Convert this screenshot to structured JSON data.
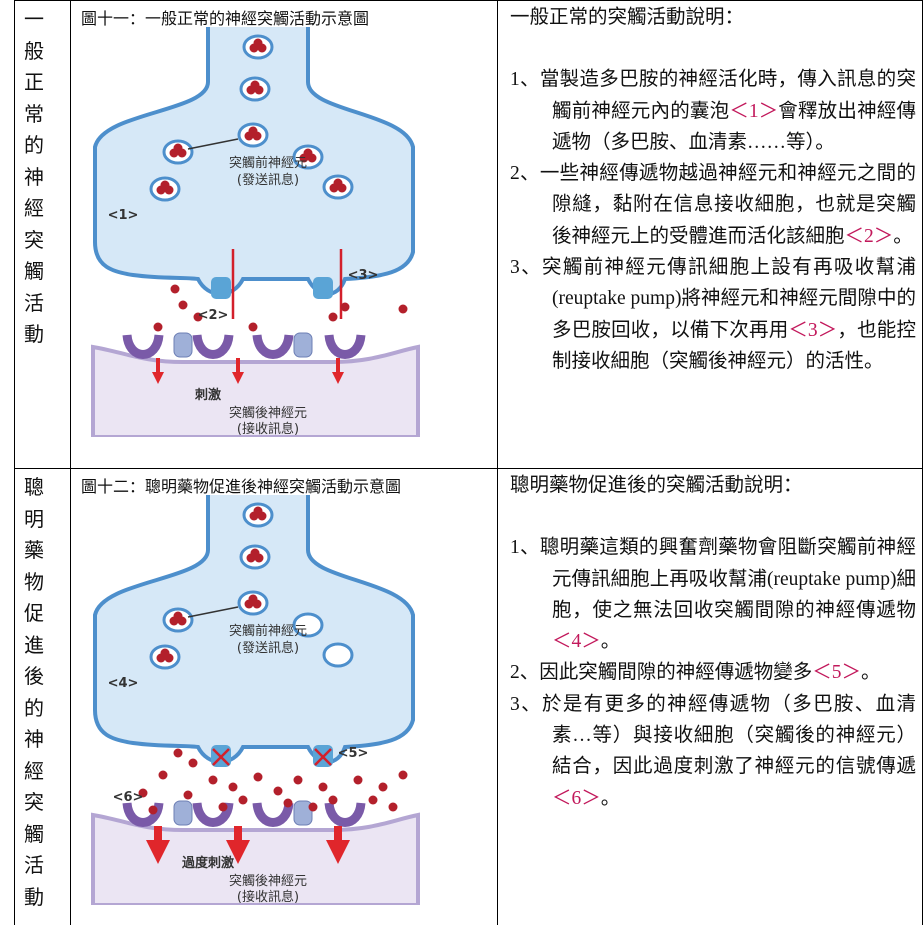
{
  "rows": [
    {
      "label": "一般正常的神經突觸活動",
      "caption": "圖十一：一般正常的神經突觸活動示意圖",
      "diagram": {
        "pre_name": "突觸前神經元",
        "pre_role": "(發送訊息)",
        "markers": [
          "<1>",
          "<2>",
          "<3>"
        ],
        "effect": "刺激",
        "post_name": "突觸後神經元",
        "post_role": "(接收訊息)"
      },
      "heading": "一般正常的突觸活動說明：",
      "items": [
        {
          "number": "1、",
          "before": "當製造多巴胺的神經活化時，傳入訊息的突觸前神經元內的囊泡",
          "ref": "＜1＞",
          "after": "會釋放出神經傳遞物（多巴胺、血清素……等）。"
        },
        {
          "number": "2、",
          "before": "一些神經傳遞物越過神經元和神經元之間的隙縫，黏附在信息接收細胞，也就是突觸後神經元上的受體進而活化該細胞",
          "ref": "＜2＞",
          "after": "。"
        },
        {
          "number": "3、",
          "before": "突觸前神經元傳訊細胞上設有再吸收幫浦(reuptake pump)將神經元和神經元間隙中的多巴胺回收，以備下次再用",
          "ref": "＜3＞",
          "after": "，也能控制接收細胞（突觸後神經元）的活性。"
        }
      ]
    },
    {
      "label": "聰明藥物促進後的神經突觸活動",
      "caption": "圖十二：聰明藥物促進後神經突觸活動示意圖",
      "diagram": {
        "pre_name": "突觸前神經元",
        "pre_role": "(發送訊息)",
        "markers": [
          "<4>",
          "<5>",
          "<6>"
        ],
        "effect": "過度刺激",
        "post_name": "突觸後神經元",
        "post_role": "(接收訊息)"
      },
      "heading": "聰明藥物促進後的突觸活動說明：",
      "items": [
        {
          "number": "1、",
          "before": "聰明藥這類的興奮劑藥物會阻斷突觸前神經元傳訊細胞上再吸收幫浦(reuptake pump)細胞，使之無法回收突觸間隙的神經傳遞物",
          "ref": "＜4＞",
          "after": "。"
        },
        {
          "number": "2、",
          "before": "因此突觸間隙的神經傳遞物變多",
          "ref": "＜5＞",
          "after": "。"
        },
        {
          "number": "3、",
          "before": "於是有更多的神經傳遞物（多巴胺、血清素…等）與接收細胞（突觸後的神經元）結合，因此過度刺激了神經元的信號傳遞",
          "ref": "＜6＞",
          "after": "。"
        }
      ]
    }
  ]
}
